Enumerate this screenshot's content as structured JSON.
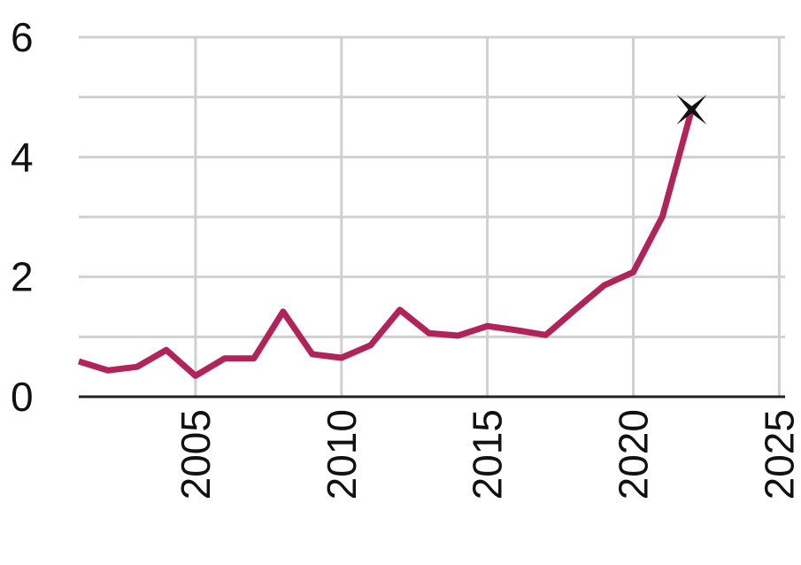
{
  "chart_data": {
    "type": "line",
    "x": [
      2001,
      2002,
      2003,
      2004,
      2005,
      2006,
      2007,
      2008,
      2009,
      2010,
      2011,
      2012,
      2013,
      2014,
      2015,
      2016,
      2017,
      2018,
      2019,
      2020,
      2021,
      2022
    ],
    "series": [
      {
        "color": "#b0245a",
        "values": [
          0.59,
          0.44,
          0.5,
          0.78,
          0.35,
          0.64,
          0.64,
          1.42,
          0.71,
          0.65,
          0.86,
          1.45,
          1.06,
          1.02,
          1.18,
          1.11,
          1.03,
          1.45,
          1.86,
          2.08,
          3.01,
          4.79
        ]
      }
    ],
    "xlim": [
      2001,
      2025.2
    ],
    "xticks": [
      2005,
      2010,
      2015,
      2020,
      2025
    ],
    "ylim": [
      0,
      6
    ],
    "yticks": [
      0,
      2,
      4,
      6
    ],
    "yminor": [
      1,
      3,
      5
    ],
    "grid": true,
    "last_marker": "x"
  }
}
